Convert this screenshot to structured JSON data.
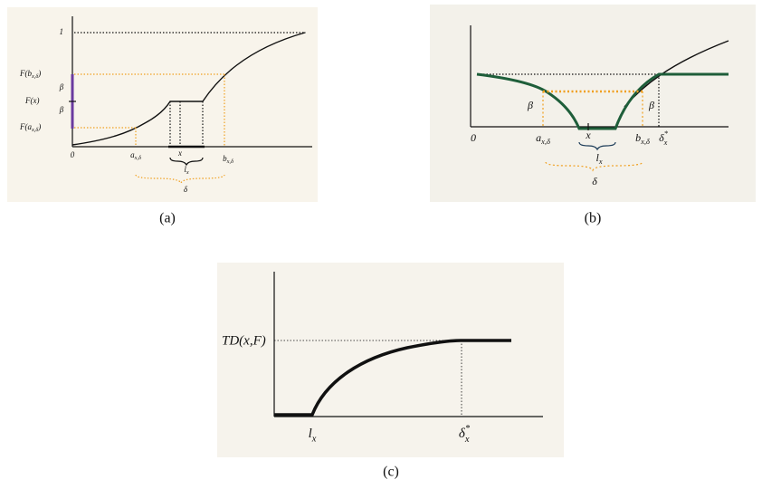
{
  "panels": [
    {
      "caption": "(a)",
      "labels": [
        "1",
        {
          "main": "F(b",
          "sub": "x,δ",
          "end": ")"
        },
        "F(x)",
        {
          "main": "F(a",
          "sub": "x,δ",
          "end": ")"
        },
        "β",
        "β",
        "0",
        {
          "main": "a",
          "sub": "x,δ"
        },
        "x",
        {
          "main": "l",
          "sub": "x"
        },
        {
          "main": "b",
          "sub": "x,δ"
        },
        "δ"
      ]
    },
    {
      "caption": "(b)",
      "labels": [
        "β",
        "β",
        "0",
        {
          "main": "a",
          "sub": "x,δ"
        },
        "x",
        {
          "main": "l",
          "sub": "x"
        },
        {
          "main": "b",
          "sub": "x,δ"
        },
        {
          "main": "δ",
          "sup": "*",
          "sub": "x"
        },
        "δ"
      ]
    },
    {
      "caption": "(c)",
      "labels": [
        "TD(x,F)",
        {
          "main": "l",
          "sub": "x"
        },
        {
          "main": "δ",
          "sup": "*",
          "sub": "x"
        }
      ]
    }
  ]
}
